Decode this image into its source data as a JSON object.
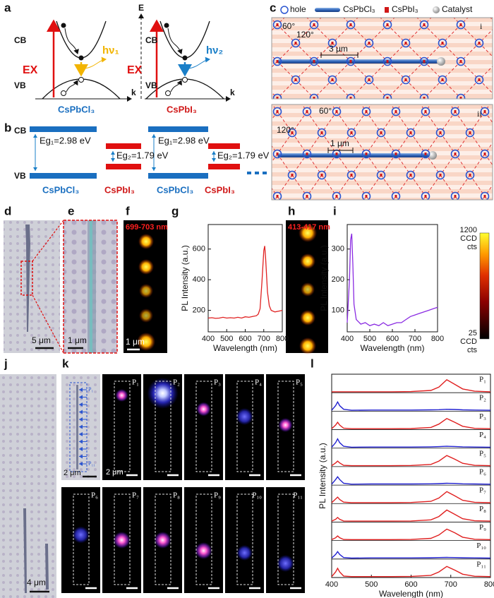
{
  "panels": {
    "a": {
      "label": "a",
      "axis_e": "E",
      "cb_left": "CB",
      "vb_left": "VB",
      "ex_left": "EX",
      "hv1": "hν₁",
      "k_left": "k",
      "material_left": "CsPbCl₃",
      "cb_right": "CB",
      "vb_right": "VB",
      "ex_right": "EX",
      "hv2": "hν₂",
      "k_right": "k",
      "material_right": "CsPbI₃"
    },
    "b": {
      "label": "b",
      "cb": "CB",
      "vb": "VB",
      "eg1_a": "Eg₁=2.98 eV",
      "eg2_a": "Eg₂=1.79 eV",
      "eg1_b": "Eg₁=2.98 eV",
      "eg2_b": "Eg₂=1.79 eV",
      "materials": [
        "CsPbCl₃",
        "CsPbI₃",
        "CsPbCl₃",
        "CsPbI₃"
      ]
    },
    "c": {
      "label": "c",
      "legend": [
        "hole",
        "CsPbCl₃",
        "CsPbI₃",
        "Catalyst"
      ],
      "i": {
        "tag": "i",
        "angle1": "60°",
        "angle2": "120°",
        "scale": "3 μm"
      },
      "ii": {
        "tag": "ii",
        "angle1": "60°",
        "angle2": "120°",
        "scale": "1 μm"
      }
    },
    "d": {
      "label": "d",
      "scale": "5 μm"
    },
    "e": {
      "label": "e",
      "scale": "1 μm"
    },
    "f": {
      "label": "f",
      "band": "699-703 nm",
      "scale": "1 μm"
    },
    "h": {
      "label": "h",
      "band": "413-417 nm"
    },
    "colorbar": {
      "max": "1200",
      "max_unit": [
        "CCD",
        "cts"
      ],
      "min": "25",
      "min_unit": [
        "CCD",
        "cts"
      ]
    },
    "j": {
      "label": "j",
      "scale": "4 μm"
    },
    "k": {
      "label": "k",
      "scale_optical": "2 μm",
      "scale_pl": "2 μm",
      "points": [
        "P₁",
        "P₂",
        "P₃",
        "P₄",
        "P₅",
        "P₆",
        "P₇",
        "P₈",
        "P₉",
        "P₁₀",
        "P₁₁"
      ]
    }
  },
  "chart_data": [
    {
      "type": "line",
      "label": "g",
      "xlabel": "Wavelength (nm)",
      "ylabel": "PL Intensity (a.u.)",
      "color": "#e02020",
      "x": [
        400,
        420,
        440,
        460,
        480,
        500,
        520,
        540,
        560,
        580,
        600,
        620,
        640,
        660,
        670,
        680,
        690,
        700,
        705,
        710,
        720,
        730,
        740,
        760,
        780,
        800
      ],
      "values": [
        150,
        152,
        148,
        150,
        155,
        150,
        152,
        150,
        155,
        150,
        158,
        155,
        160,
        165,
        175,
        210,
        380,
        590,
        620,
        540,
        320,
        230,
        200,
        190,
        195,
        200
      ],
      "xlim": [
        400,
        800
      ],
      "xticks": [
        400,
        500,
        600,
        700,
        800
      ],
      "ylim": [
        60,
        760
      ],
      "yticks": [
        200,
        400,
        600
      ]
    },
    {
      "type": "line",
      "label": "i",
      "xlabel": "Wavelength (nm)",
      "ylabel": "PL Intensity (a.u.)",
      "color": "#8a2be2",
      "x": [
        400,
        410,
        415,
        420,
        425,
        430,
        440,
        460,
        480,
        500,
        520,
        540,
        560,
        580,
        600,
        620,
        640,
        660,
        680,
        700,
        720,
        740,
        760,
        780,
        800
      ],
      "values": [
        60,
        200,
        330,
        350,
        250,
        120,
        70,
        55,
        60,
        50,
        55,
        50,
        60,
        50,
        55,
        60,
        60,
        70,
        80,
        85,
        90,
        95,
        100,
        105,
        110
      ],
      "xlim": [
        400,
        800
      ],
      "xticks": [
        400,
        500,
        600,
        700,
        800
      ],
      "ylim": [
        30,
        380
      ],
      "yticks": [
        100,
        200,
        300
      ]
    },
    {
      "type": "line",
      "label": "l",
      "xlabel": "Wavelength (nm)",
      "ylabel": "PL Intensity (a.u.)",
      "x": [
        400,
        410,
        415,
        420,
        430,
        450,
        500,
        550,
        600,
        650,
        670,
        690,
        710,
        730,
        760,
        800
      ],
      "xlim": [
        400,
        800
      ],
      "xticks": [
        400,
        500,
        600,
        700,
        800
      ],
      "ylim": [
        0,
        1
      ],
      "series": [
        {
          "name": "P₁",
          "color": "#e02020",
          "values": [
            0.05,
            0.05,
            0.05,
            0.05,
            0.05,
            0.05,
            0.05,
            0.05,
            0.06,
            0.12,
            0.3,
            0.7,
            0.45,
            0.2,
            0.08,
            0.05
          ]
        },
        {
          "name": "P₂",
          "color": "#2020d0",
          "values": [
            0.05,
            0.3,
            0.5,
            0.3,
            0.1,
            0.05,
            0.06,
            0.06,
            0.06,
            0.07,
            0.08,
            0.1,
            0.09,
            0.07,
            0.06,
            0.05
          ]
        },
        {
          "name": "P₃",
          "color": "#e02020",
          "values": [
            0.05,
            0.25,
            0.4,
            0.25,
            0.08,
            0.05,
            0.05,
            0.05,
            0.06,
            0.12,
            0.3,
            0.6,
            0.4,
            0.18,
            0.07,
            0.05
          ]
        },
        {
          "name": "P₄",
          "color": "#2020d0",
          "values": [
            0.05,
            0.3,
            0.5,
            0.3,
            0.1,
            0.05,
            0.06,
            0.06,
            0.06,
            0.07,
            0.08,
            0.1,
            0.09,
            0.07,
            0.06,
            0.05
          ]
        },
        {
          "name": "P₅",
          "color": "#e02020",
          "values": [
            0.05,
            0.2,
            0.3,
            0.2,
            0.07,
            0.05,
            0.05,
            0.05,
            0.06,
            0.12,
            0.3,
            0.6,
            0.4,
            0.18,
            0.07,
            0.05
          ]
        },
        {
          "name": "P₆",
          "color": "#2020d0",
          "values": [
            0.05,
            0.3,
            0.45,
            0.3,
            0.1,
            0.05,
            0.06,
            0.06,
            0.06,
            0.07,
            0.08,
            0.1,
            0.09,
            0.07,
            0.06,
            0.05
          ]
        },
        {
          "name": "P₇",
          "color": "#e02020",
          "values": [
            0.05,
            0.25,
            0.35,
            0.22,
            0.08,
            0.05,
            0.05,
            0.05,
            0.06,
            0.12,
            0.3,
            0.65,
            0.42,
            0.18,
            0.07,
            0.05
          ]
        },
        {
          "name": "P₈",
          "color": "#e02020",
          "values": [
            0.05,
            0.15,
            0.25,
            0.15,
            0.06,
            0.05,
            0.05,
            0.05,
            0.06,
            0.12,
            0.3,
            0.65,
            0.42,
            0.18,
            0.07,
            0.05
          ]
        },
        {
          "name": "P₉",
          "color": "#e02020",
          "values": [
            0.05,
            0.15,
            0.25,
            0.15,
            0.06,
            0.05,
            0.05,
            0.05,
            0.06,
            0.12,
            0.3,
            0.62,
            0.42,
            0.18,
            0.07,
            0.05
          ]
        },
        {
          "name": "P₁₀",
          "color": "#2020d0",
          "values": [
            0.05,
            0.25,
            0.4,
            0.25,
            0.08,
            0.05,
            0.06,
            0.06,
            0.06,
            0.07,
            0.08,
            0.09,
            0.08,
            0.07,
            0.06,
            0.05
          ]
        },
        {
          "name": "P₁₁",
          "color": "#e02020",
          "values": [
            0.05,
            0.3,
            0.5,
            0.3,
            0.08,
            0.05,
            0.05,
            0.05,
            0.06,
            0.12,
            0.3,
            0.6,
            0.4,
            0.18,
            0.07,
            0.05
          ]
        }
      ]
    }
  ]
}
